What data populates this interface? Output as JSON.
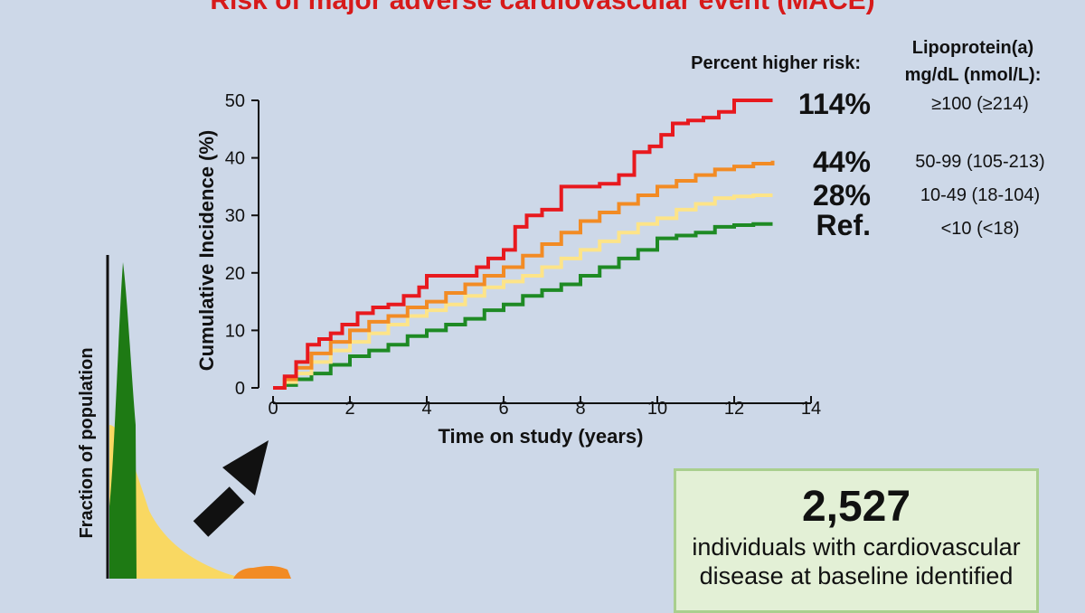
{
  "title": "Risk of major adverse cardiovascular event (MACE)",
  "risk_header": "Percent higher risk:",
  "lpa_header_line1": "Lipoprotein(a)",
  "lpa_header_line2": "mg/dL (nmol/L):",
  "groups": [
    {
      "risk": "114%",
      "lpa": "≥100 (≥214)",
      "color": "#e8191e"
    },
    {
      "risk": "44%",
      "lpa": "50-99 (105-213)",
      "color": "#f28b24"
    },
    {
      "risk": "28%",
      "lpa": "10-49 (18-104)",
      "color": "#fde488"
    },
    {
      "risk": "Ref.",
      "lpa": "<10 (<18)",
      "color": "#1e8a24"
    }
  ],
  "info_box": {
    "number": "2,527",
    "text": "individuals with cardiovascular disease at baseline identified"
  },
  "distribution": {
    "ylabel": "Fraction of population",
    "colors": {
      "green": "#1e7a14",
      "yellow": "#f9d862",
      "orange": "#f28b24"
    }
  },
  "chart_data": {
    "type": "line",
    "title": "Risk of major adverse cardiovascular event (MACE)",
    "xlabel": "Time on study (years)",
    "ylabel": "Cumulative Incidence (%)",
    "xlim": [
      0,
      14
    ],
    "ylim": [
      0,
      50
    ],
    "xticks": [
      0,
      2,
      4,
      6,
      8,
      10,
      12,
      14
    ],
    "yticks": [
      0,
      10,
      20,
      30,
      40,
      50
    ],
    "series": [
      {
        "name": "≥100 (≥214)",
        "color": "#e8191e",
        "x": [
          0,
          0.3,
          0.6,
          0.9,
          1.2,
          1.5,
          1.8,
          2.2,
          2.6,
          3.0,
          3.4,
          3.8,
          4.0,
          4.5,
          5.0,
          5.3,
          5.6,
          6.0,
          6.3,
          6.6,
          7.0,
          7.5,
          8.0,
          8.5,
          9.0,
          9.4,
          9.8,
          10.1,
          10.4,
          10.8,
          11.2,
          11.6,
          12.0,
          12.5,
          13.0
        ],
        "y": [
          0,
          2,
          4.5,
          7.5,
          8.5,
          9.5,
          11,
          13,
          14,
          14.5,
          16,
          17.5,
          19.5,
          19.5,
          19.5,
          21,
          22.5,
          24,
          28,
          30,
          31,
          35,
          35,
          35.5,
          37,
          41,
          42,
          44,
          46,
          46.5,
          47,
          48,
          50,
          50,
          50
        ]
      },
      {
        "name": "50-99 (105-213)",
        "color": "#f28b24",
        "x": [
          0,
          0.3,
          0.6,
          1.0,
          1.5,
          2.0,
          2.5,
          3.0,
          3.5,
          4.0,
          4.5,
          5.0,
          5.5,
          6.0,
          6.5,
          7.0,
          7.5,
          8.0,
          8.5,
          9.0,
          9.5,
          10.0,
          10.5,
          11.0,
          11.5,
          12.0,
          12.5,
          13.0
        ],
        "y": [
          0,
          1.5,
          3.5,
          6,
          8,
          10,
          11.5,
          12.5,
          14,
          15,
          16.5,
          18,
          19.5,
          21,
          23,
          25,
          27,
          29,
          30.5,
          32,
          33.5,
          35,
          36,
          37,
          38,
          38.5,
          39,
          39.5
        ]
      },
      {
        "name": "10-49 (18-104)",
        "color": "#fde488",
        "x": [
          0,
          0.3,
          0.6,
          1.0,
          1.5,
          2.0,
          2.5,
          3.0,
          3.5,
          4.0,
          4.5,
          5.0,
          5.5,
          6.0,
          6.5,
          7.0,
          7.5,
          8.0,
          8.5,
          9.0,
          9.5,
          10.0,
          10.5,
          11.0,
          11.5,
          12.0,
          12.5,
          13.0
        ],
        "y": [
          0,
          1,
          2.5,
          4.5,
          6.5,
          8,
          9.5,
          11,
          12.5,
          13.5,
          14.5,
          16,
          17.5,
          18.5,
          19.5,
          21,
          22.5,
          24,
          25.5,
          27,
          28.5,
          29.5,
          31,
          32,
          33,
          33.3,
          33.5,
          33.5
        ]
      },
      {
        "name": "<10 (<18)",
        "color": "#1e8a24",
        "x": [
          0,
          0.3,
          0.6,
          1.0,
          1.5,
          2.0,
          2.5,
          3.0,
          3.5,
          4.0,
          4.5,
          5.0,
          5.5,
          6.0,
          6.5,
          7.0,
          7.5,
          8.0,
          8.5,
          9.0,
          9.5,
          10.0,
          10.5,
          11.0,
          11.5,
          12.0,
          12.5,
          13.0
        ],
        "y": [
          0,
          0.5,
          1.5,
          2.5,
          4,
          5.5,
          6.5,
          7.5,
          9,
          10,
          11,
          12,
          13.5,
          14.5,
          16,
          17,
          18,
          19.5,
          21,
          22.5,
          24,
          26,
          26.5,
          27,
          28,
          28.3,
          28.5,
          28.5
        ]
      }
    ]
  }
}
